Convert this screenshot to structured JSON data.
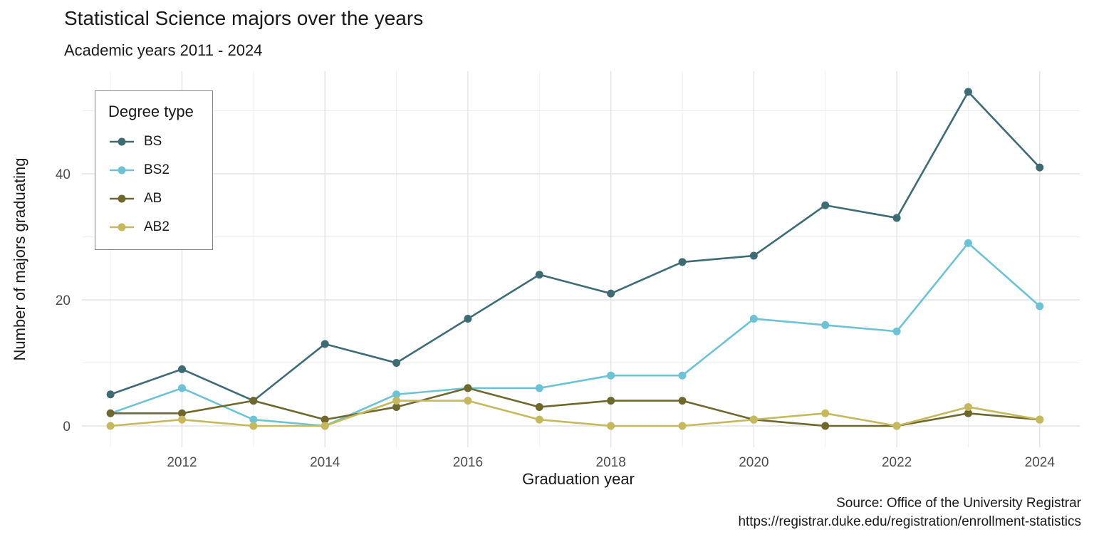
{
  "figure": {
    "background": "#ffffff"
  },
  "chart_data": {
    "type": "line",
    "title": "Statistical Science majors over the years",
    "subtitle": "Academic years 2011 - 2024",
    "xlabel": "Graduation year",
    "ylabel": "Number of majors graduating",
    "legend_title": "Degree type",
    "legend_position": "inside-top-left",
    "grid": true,
    "caption": [
      "Source: Office of the University Registrar",
      "https://registrar.duke.edu/registration/enrollment-statistics"
    ],
    "x": [
      2011,
      2012,
      2013,
      2014,
      2015,
      2016,
      2017,
      2018,
      2019,
      2020,
      2021,
      2022,
      2023,
      2024
    ],
    "series": [
      {
        "name": "BS",
        "color": "#3d6c75",
        "values": [
          5,
          9,
          4,
          13,
          10,
          17,
          24,
          21,
          26,
          27,
          35,
          33,
          53,
          41
        ]
      },
      {
        "name": "BS2",
        "color": "#6cc3d5",
        "values": [
          2,
          6,
          1,
          0,
          5,
          6,
          6,
          8,
          8,
          17,
          16,
          15,
          29,
          19
        ]
      },
      {
        "name": "AB",
        "color": "#6f682d",
        "values": [
          2,
          2,
          4,
          1,
          3,
          6,
          3,
          4,
          4,
          1,
          0,
          0,
          2,
          1
        ]
      },
      {
        "name": "AB2",
        "color": "#c5b95c",
        "values": [
          0,
          1,
          0,
          0,
          4,
          4,
          1,
          0,
          0,
          1,
          2,
          0,
          3,
          1
        ]
      }
    ],
    "x_ticks": [
      2012,
      2014,
      2016,
      2018,
      2020,
      2022,
      2024
    ],
    "y_ticks": [
      0,
      20,
      40
    ],
    "x_domain": [
      2010.6,
      2024.56
    ],
    "y_domain": [
      -3.39,
      56.27
    ],
    "grid_major_color": "#e3e3e3",
    "grid_minor_color": "#efefef"
  }
}
